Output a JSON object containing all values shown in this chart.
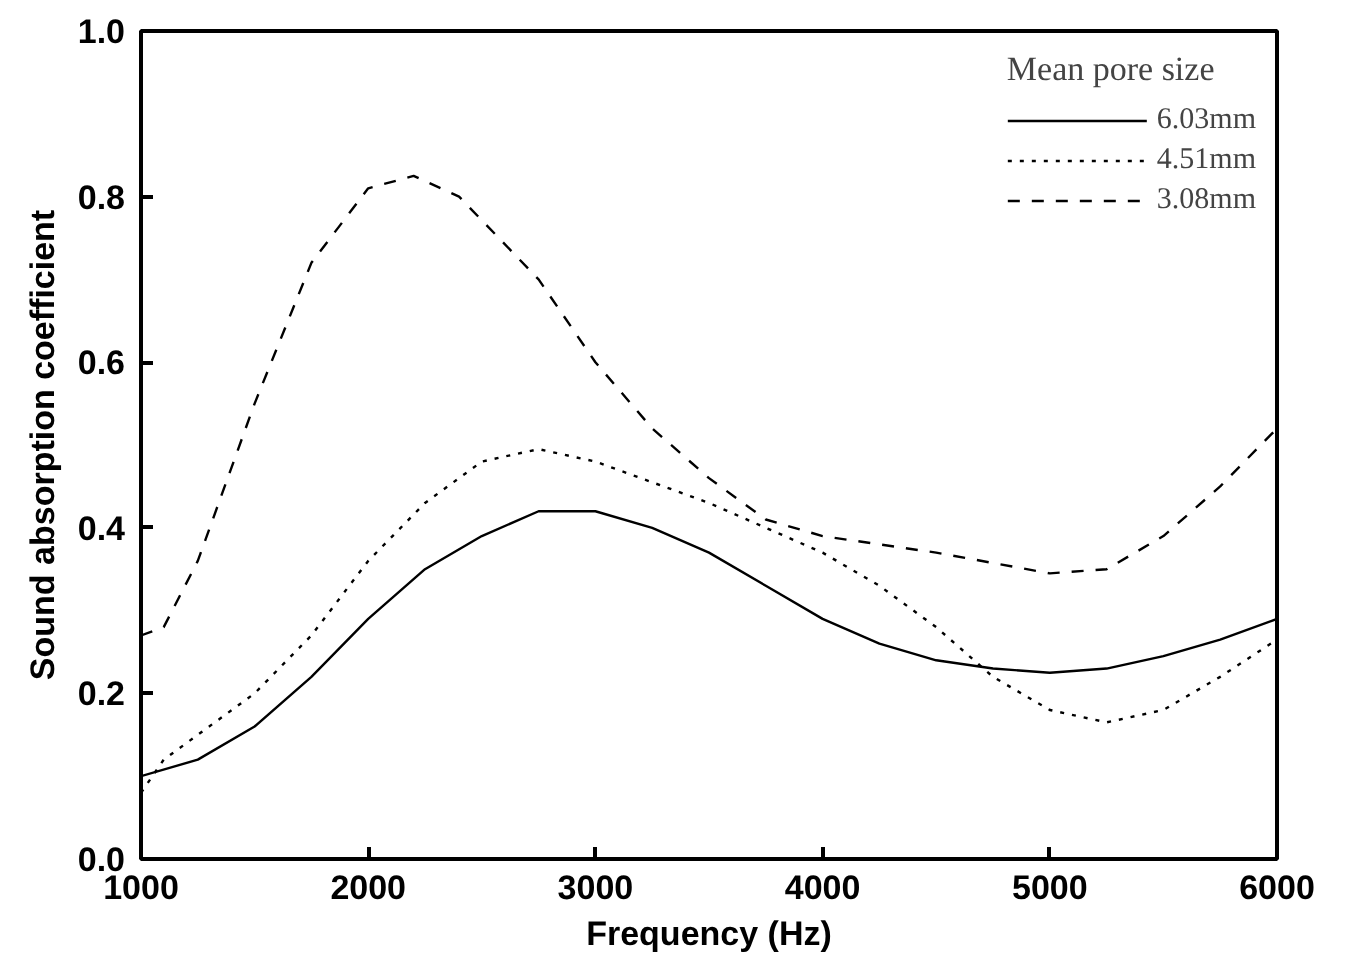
{
  "chart_data": {
    "type": "line",
    "xlabel": "Frequency (Hz)",
    "ylabel": "Sound absorption coefficient",
    "legend_title": "Mean pore size",
    "legend": "top right",
    "grid": false,
    "marker": "none",
    "xlim": [
      1000,
      6000
    ],
    "xticks": [
      1000,
      2000,
      3000,
      4000,
      5000,
      6000
    ],
    "ylim": [
      0,
      1
    ],
    "yticks": [
      {
        "value": 0,
        "label": "0.0"
      },
      {
        "value": 0.2,
        "label": "0.2"
      },
      {
        "value": 0.4,
        "label": "0.4"
      },
      {
        "value": 0.6,
        "label": "0.6"
      },
      {
        "value": 0.8,
        "label": "0.8"
      },
      {
        "value": 1,
        "label": "1.0"
      }
    ],
    "series": [
      {
        "name": "6.03mm",
        "color": "#000000",
        "line_style": "solid",
        "x": [
          1000,
          1250,
          1500,
          1750,
          2000,
          2250,
          2500,
          2750,
          3000,
          3250,
          3500,
          3750,
          4000,
          4250,
          4500,
          4750,
          5000,
          5250,
          5500,
          5750,
          6000
        ],
        "values": [
          0.1,
          0.12,
          0.16,
          0.22,
          0.29,
          0.35,
          0.39,
          0.42,
          0.42,
          0.4,
          0.37,
          0.33,
          0.29,
          0.26,
          0.24,
          0.23,
          0.225,
          0.23,
          0.245,
          0.265,
          0.29
        ]
      },
      {
        "name": "4.51mm",
        "color": "#000000",
        "line_style": "dotted",
        "x": [
          1000,
          1100,
          1250,
          1500,
          1750,
          2000,
          2250,
          2500,
          2750,
          3000,
          3250,
          3500,
          3750,
          4000,
          4250,
          4500,
          4750,
          5000,
          5250,
          5500,
          5750,
          6000
        ],
        "values": [
          0.08,
          0.12,
          0.15,
          0.2,
          0.27,
          0.36,
          0.43,
          0.48,
          0.495,
          0.48,
          0.455,
          0.43,
          0.4,
          0.37,
          0.33,
          0.28,
          0.22,
          0.18,
          0.165,
          0.18,
          0.22,
          0.265
        ]
      },
      {
        "name": "3.08mm",
        "color": "#000000",
        "line_style": "dashed",
        "x": [
          1000,
          1100,
          1250,
          1500,
          1750,
          2000,
          2200,
          2400,
          2750,
          3000,
          3250,
          3500,
          3750,
          4000,
          4500,
          5000,
          5250,
          5500,
          5750,
          6000
        ],
        "values": [
          0.27,
          0.28,
          0.36,
          0.55,
          0.72,
          0.81,
          0.825,
          0.8,
          0.7,
          0.6,
          0.52,
          0.46,
          0.41,
          0.39,
          0.37,
          0.345,
          0.35,
          0.39,
          0.45,
          0.52
        ]
      }
    ]
  }
}
